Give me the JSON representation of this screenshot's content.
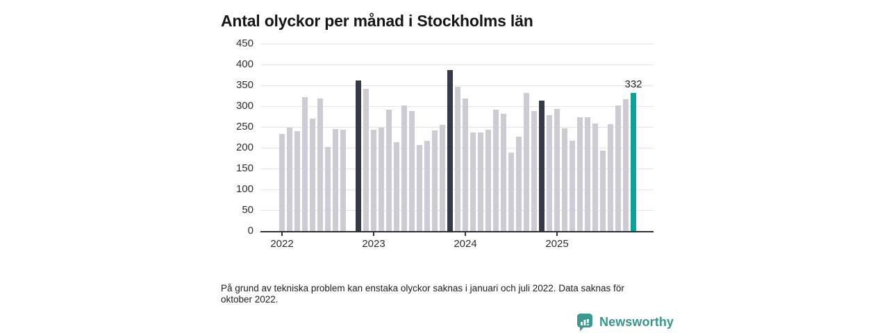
{
  "title": "Antal olyckor per månad i Stockholms län",
  "footnote": "På grund av tekniska problem kan enstaka olyckor saknas i januari och juli 2022. Data saknas för oktober 2022.",
  "logo": {
    "name": "Newsworthy",
    "icon": "newsworthy-speech-bubble-chart-icon"
  },
  "colors": {
    "bar": "#cdccd4",
    "bar_dark": "#363a48",
    "bar_accent": "#0ba29a",
    "grid": "#e4e4e7",
    "axis": "#2f2f2f",
    "logo": "#37968b"
  },
  "chart_data": {
    "type": "bar",
    "title": "Antal olyckor per månad i Stockholms län",
    "xlabel": "",
    "ylabel": "",
    "ylim": [
      0,
      450
    ],
    "y_ticks": [
      0,
      50,
      100,
      150,
      200,
      250,
      300,
      350,
      400,
      450
    ],
    "x_tick_labels": [
      "2022",
      "2023",
      "2024",
      "2025"
    ],
    "grid": "horizontal",
    "legend": "none",
    "annotation": {
      "text": "332",
      "month": "2025-11"
    },
    "highlight_months": {
      "dark": [
        "2022-11",
        "2023-11",
        "2024-11"
      ],
      "accent": [
        "2025-11"
      ]
    },
    "missing_months": [
      "2022-10"
    ],
    "series": [
      {
        "year": 2022,
        "values": [
          233,
          248,
          240,
          322,
          270,
          318,
          201,
          245,
          244,
          null,
          362,
          341
        ]
      },
      {
        "year": 2023,
        "values": [
          243,
          249,
          292,
          213,
          302,
          288,
          206,
          217,
          242,
          255,
          387,
          346
        ]
      },
      {
        "year": 2024,
        "values": [
          318,
          237,
          236,
          244,
          291,
          281,
          188,
          227,
          331,
          289,
          313,
          279
        ]
      },
      {
        "year": 2025,
        "values": [
          293,
          247,
          216,
          274,
          273,
          258,
          194,
          257,
          301,
          317,
          332
        ]
      }
    ]
  }
}
